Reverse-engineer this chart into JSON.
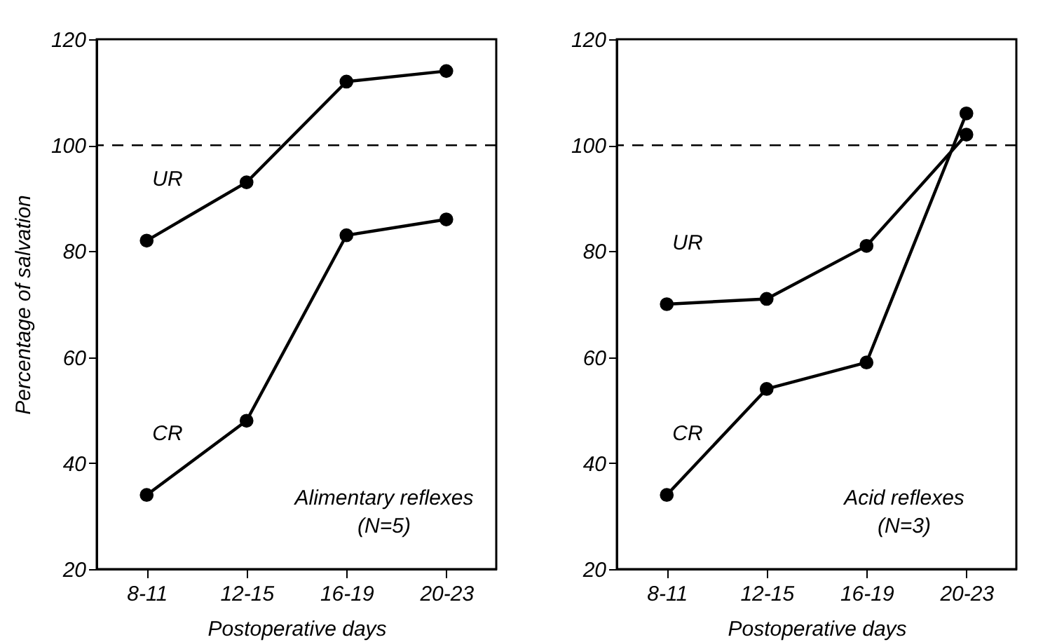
{
  "chart_data": [
    {
      "type": "line",
      "ylabel": "Percentage of salvation",
      "xlabel": "Postoperative days",
      "categories": [
        "8-11",
        "12-15",
        "16-19",
        "20-23"
      ],
      "ylim": [
        20,
        120
      ],
      "yticks": [
        20,
        40,
        60,
        80,
        100,
        120
      ],
      "grid": false,
      "marker": "circle",
      "line_style": "solid",
      "annotations": [
        "Alimentary reflexes\n(N=5)"
      ],
      "ref_lines": [
        {
          "axis": "y",
          "value": 100,
          "line_style": "dashed",
          "color": "#000000"
        }
      ],
      "series": [
        {
          "name": "UR",
          "color": "#000000",
          "values": [
            82,
            93,
            112,
            114
          ]
        },
        {
          "name": "CR",
          "color": "#000000",
          "values": [
            34,
            48,
            83,
            86
          ]
        }
      ]
    },
    {
      "type": "line",
      "xlabel": "Postoperative days",
      "categories": [
        "8-11",
        "12-15",
        "16-19",
        "20-23"
      ],
      "ylim": [
        20,
        120
      ],
      "yticks": [
        20,
        40,
        60,
        80,
        100,
        120
      ],
      "grid": false,
      "marker": "circle",
      "line_style": "solid",
      "annotations": [
        "Acid reflexes\n(N=3)"
      ],
      "ref_lines": [
        {
          "axis": "y",
          "value": 100,
          "line_style": "dashed",
          "color": "#000000"
        }
      ],
      "series": [
        {
          "name": "UR",
          "color": "#000000",
          "values": [
            70,
            71,
            81,
            102
          ]
        },
        {
          "name": "CR",
          "color": "#000000",
          "values": [
            34,
            54,
            59,
            106
          ]
        }
      ]
    }
  ]
}
